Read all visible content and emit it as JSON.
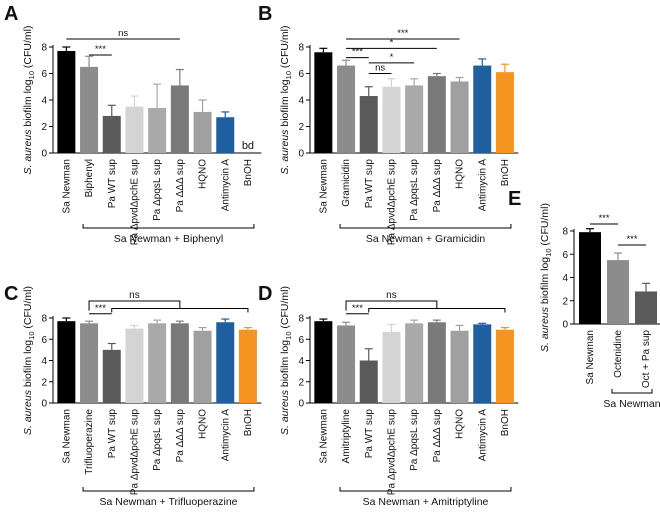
{
  "figure_title": "S. aureus biofilm under treatment panels",
  "chart_data": [
    {
      "panel": "A",
      "type": "bar",
      "ylabel_italic": "S. aureus",
      "ylabel_rest": " biofilm log",
      "ylabel_sub": "10",
      "ylabel_unit": " (CFU/ml)",
      "ylim": [
        0,
        8
      ],
      "yticks": [
        "0",
        "2",
        "4",
        "6",
        "8"
      ],
      "categories": [
        "Sa Newman",
        "Biphenyl",
        "Pa WT sup",
        "Pa ΔpvdΔpchE sup",
        "Pa ΔpqsL sup",
        "Pa ΔΔΔ sup",
        "HQNO",
        "Antimycin A",
        "BnOH"
      ],
      "values": [
        7.7,
        6.5,
        2.8,
        3.5,
        3.4,
        5.1,
        3.1,
        2.7,
        0
      ],
      "errors": [
        0.3,
        0.8,
        0.8,
        0.8,
        1.8,
        1.2,
        0.9,
        0.4,
        0
      ],
      "colors": [
        "#000000",
        "#8c8c8c",
        "#5a5a5a",
        "#d4d4d4",
        "#a9a9a9",
        "#7a7a7a",
        "#a0a0a0",
        "#1f5fa0",
        "#f5951f"
      ],
      "value_text": [
        "",
        "",
        "",
        "",
        "",
        "",
        "",
        "",
        "bd"
      ],
      "sig": [
        {
          "label": "***",
          "from": 1,
          "to": 2,
          "y": 7.4
        },
        {
          "label": "ns",
          "from": 0,
          "to": 5,
          "y": 8.6
        }
      ],
      "group_label": "Sa Newman + Biphenyl",
      "group_from": 1,
      "group_to": 8
    },
    {
      "panel": "B",
      "type": "bar",
      "ylabel_italic": "S. aureus",
      "ylabel_rest": " biofilm log",
      "ylabel_sub": "10",
      "ylabel_unit": " (CFU/ml)",
      "ylim": [
        0,
        8
      ],
      "yticks": [
        "0",
        "2",
        "4",
        "6",
        "8"
      ],
      "categories": [
        "Sa Newman",
        "Gramicidin",
        "Pa WT sup",
        "Pa ΔpvdΔpchE sup",
        "Pa ΔpqsL sup",
        "Pa ΔΔΔ sup",
        "HQNO",
        "Antimycin A",
        "BnOH"
      ],
      "values": [
        7.6,
        6.6,
        4.3,
        5.0,
        5.1,
        5.8,
        5.4,
        6.6,
        6.1
      ],
      "errors": [
        0.3,
        0.4,
        0.7,
        0.6,
        0.5,
        0.2,
        0.3,
        0.5,
        0.6
      ],
      "colors": [
        "#000000",
        "#8c8c8c",
        "#5a5a5a",
        "#d4d4d4",
        "#a9a9a9",
        "#7a7a7a",
        "#a0a0a0",
        "#1f5fa0",
        "#f5951f"
      ],
      "value_text": [
        "",
        "",
        "",
        "",
        "",
        "",
        "",
        "",
        ""
      ],
      "sig": [
        {
          "label": "***",
          "from": 1,
          "to": 2,
          "y": 7.2
        },
        {
          "label": "ns",
          "from": 2,
          "to": 3,
          "y": 6.0
        },
        {
          "label": "*",
          "from": 2,
          "to": 4,
          "y": 6.8
        },
        {
          "label": "*",
          "from": 1,
          "to": 5,
          "y": 7.9
        },
        {
          "label": "***",
          "from": 1,
          "to": 6,
          "y": 8.6
        }
      ],
      "group_label": "Sa Newman + Gramicidin",
      "group_from": 1,
      "group_to": 8
    },
    {
      "panel": "C",
      "type": "bar",
      "ylabel_italic": "S. aureus",
      "ylabel_rest": " biofilm log",
      "ylabel_sub": "10",
      "ylabel_unit": " (CFU/ml)",
      "ylim": [
        0,
        8
      ],
      "yticks": [
        "0",
        "2",
        "4",
        "6",
        "8"
      ],
      "categories": [
        "Sa Newman",
        "Trifluoperazine",
        "Pa WT sup",
        "Pa ΔpvdΔpchE sup",
        "Pa ΔpqsL sup",
        "Pa ΔΔΔ sup",
        "HQNO",
        "Antimycin A",
        "BnOH"
      ],
      "values": [
        7.7,
        7.5,
        5.0,
        7.0,
        7.5,
        7.5,
        6.8,
        7.6,
        6.9
      ],
      "errors": [
        0.3,
        0.2,
        0.6,
        0.3,
        0.3,
        0.2,
        0.3,
        0.3,
        0.2
      ],
      "colors": [
        "#000000",
        "#8c8c8c",
        "#5a5a5a",
        "#d4d4d4",
        "#a9a9a9",
        "#7a7a7a",
        "#a0a0a0",
        "#1f5fa0",
        "#f5951f"
      ],
      "value_text": [
        "",
        "",
        "",
        "",
        "",
        "",
        "",
        "",
        ""
      ],
      "sig": [
        {
          "label": "***",
          "from": 1,
          "to": 2,
          "y": 8.4
        }
      ],
      "ns_bracket": {
        "label": "ns",
        "from": 1,
        "top": 9.6,
        "sub_from": 2,
        "sub_to": 8,
        "sub_y": 8.9
      },
      "group_label": "Sa Newman + Trifluoperazine",
      "group_from": 1,
      "group_to": 8
    },
    {
      "panel": "D",
      "type": "bar",
      "ylabel_italic": "S. aureus",
      "ylabel_rest": " biofilm log",
      "ylabel_sub": "10",
      "ylabel_unit": " (CFU/ml)",
      "ylim": [
        0,
        8
      ],
      "yticks": [
        "0",
        "2",
        "4",
        "6",
        "8"
      ],
      "categories": [
        "Sa Newman",
        "Amitriptyline",
        "Pa WT sup",
        "Pa ΔpvdΔpchE sup",
        "Pa ΔpqsL sup",
        "Pa ΔΔΔ sup",
        "HQNO",
        "Antimycin A",
        "BnOH"
      ],
      "values": [
        7.7,
        7.3,
        4.0,
        6.7,
        7.5,
        7.6,
        6.8,
        7.4,
        6.9
      ],
      "errors": [
        0.2,
        0.3,
        1.1,
        0.7,
        0.3,
        0.2,
        0.5,
        0.1,
        0.2
      ],
      "colors": [
        "#000000",
        "#8c8c8c",
        "#5a5a5a",
        "#d4d4d4",
        "#a9a9a9",
        "#7a7a7a",
        "#a0a0a0",
        "#1f5fa0",
        "#f5951f"
      ],
      "value_text": [
        "",
        "",
        "",
        "",
        "",
        "",
        "",
        "",
        ""
      ],
      "sig": [
        {
          "label": "***",
          "from": 1,
          "to": 2,
          "y": 8.4
        }
      ],
      "ns_bracket": {
        "label": "ns",
        "from": 1,
        "top": 9.6,
        "sub_from": 2,
        "sub_to": 8,
        "sub_y": 8.9
      },
      "group_label": "Sa Newman + Amitriptyline",
      "group_from": 1,
      "group_to": 8
    },
    {
      "panel": "E",
      "type": "bar",
      "ylabel_italic": "S. aureus",
      "ylabel_rest": " biofilm log",
      "ylabel_sub": "10",
      "ylabel_unit": " (CFU/ml)",
      "ylim": [
        0,
        8
      ],
      "yticks": [
        "0",
        "2",
        "4",
        "6",
        "8"
      ],
      "categories": [
        "Sa Newman",
        "Octenidine",
        "Oct + Pa sup"
      ],
      "values": [
        7.9,
        5.5,
        2.8
      ],
      "errors": [
        0.3,
        0.6,
        0.7
      ],
      "colors": [
        "#000000",
        "#8c8c8c",
        "#5a5a5a"
      ],
      "value_text": [
        "",
        "",
        ""
      ],
      "sig": [
        {
          "label": "***",
          "from": 0,
          "to": 1,
          "y": 8.6
        },
        {
          "label": "***",
          "from": 1,
          "to": 2,
          "y": 6.8
        }
      ],
      "group_label": "Sa Newman",
      "group_from": 1,
      "group_to": 2
    }
  ]
}
